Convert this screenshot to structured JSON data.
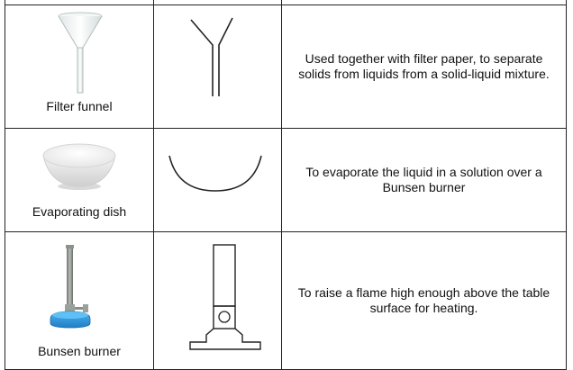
{
  "rows": [
    {
      "name": "Filter funnel",
      "description": "Used together with filter paper, to separate solids from liquids from a solid-liquid mixture."
    },
    {
      "name": "Evaporating dish",
      "description": "To evaporate the liquid in a solution over a Bunsen burner"
    },
    {
      "name": "Bunsen burner",
      "description": "To raise a flame high enough above the table surface for heating."
    }
  ],
  "colors": {
    "line": "#222222",
    "burner_base": "#2a8fd6",
    "burner_tube": "#8a8f8a"
  }
}
